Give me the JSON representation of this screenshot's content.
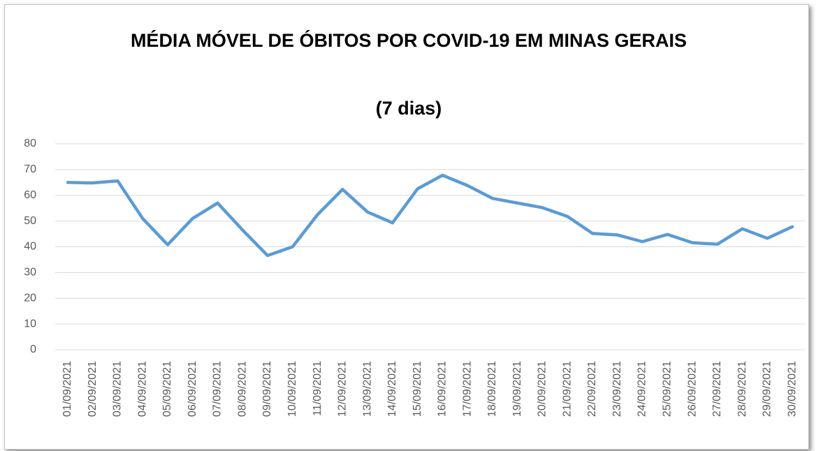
{
  "chart_data": {
    "type": "line",
    "title": "MÉDIA MÓVEL DE ÓBITOS POR COVID-19 EM MINAS GERAIS",
    "subtitle": "(7 dias)",
    "x": [
      "01/09/2021",
      "02/09/2021",
      "03/09/2021",
      "04/09/2021",
      "05/09/2021",
      "06/09/2021",
      "07/09/2021",
      "08/09/2021",
      "09/09/2021",
      "10/09/2021",
      "11/09/2021",
      "12/09/2021",
      "13/09/2021",
      "14/09/2021",
      "15/09/2021",
      "16/09/2021",
      "17/09/2021",
      "18/09/2021",
      "19/09/2021",
      "20/09/2021",
      "21/09/2021",
      "22/09/2021",
      "23/09/2021",
      "24/09/2021",
      "25/09/2021",
      "26/09/2021",
      "27/09/2021",
      "28/09/2021",
      "29/09/2021",
      "30/09/2021"
    ],
    "values": [
      65,
      64.8,
      65.6,
      51,
      40.8,
      51,
      57,
      46.5,
      36.6,
      40,
      52.5,
      62.3,
      53.5,
      49.3,
      62.5,
      67.8,
      63.8,
      58.8,
      57,
      55.2,
      51.8,
      45.2,
      44.6,
      42,
      44.8,
      41.6,
      41,
      47,
      43.3,
      47.8
    ],
    "color": "#5b9bd5",
    "ylim": [
      0,
      80
    ],
    "yticks": [
      0,
      10,
      20,
      30,
      40,
      50,
      60,
      70,
      80
    ],
    "grid": true
  }
}
